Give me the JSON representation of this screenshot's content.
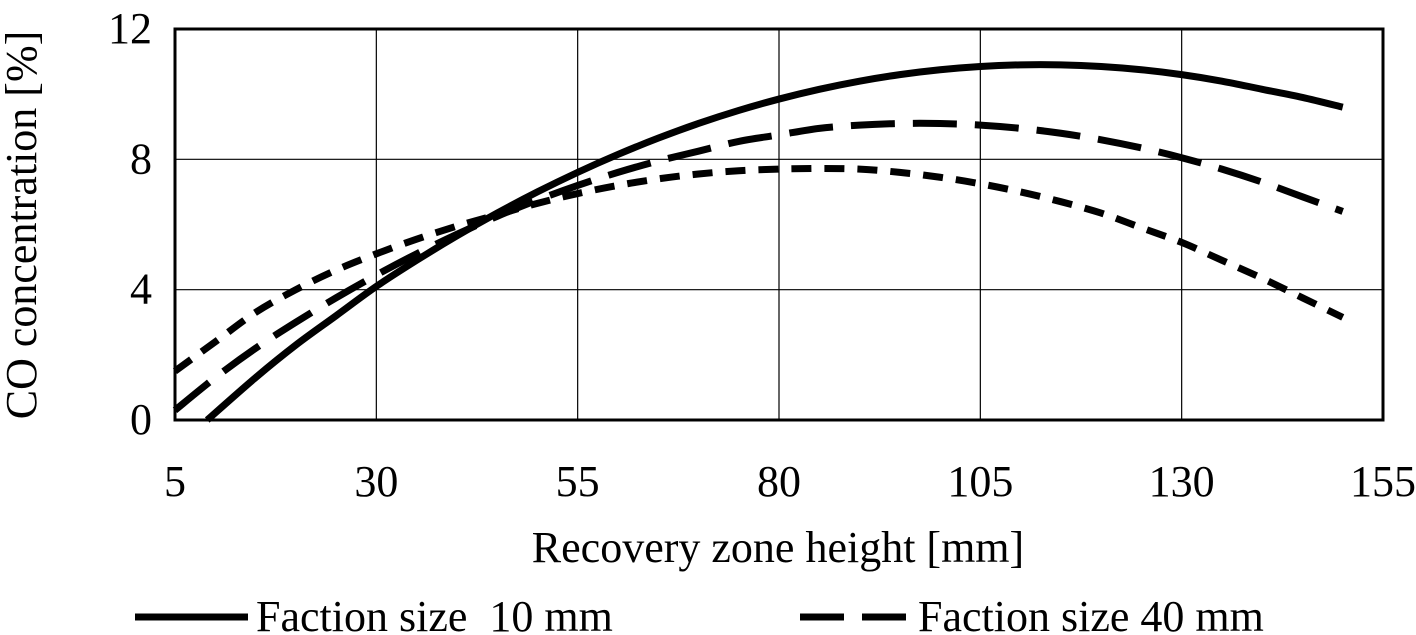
{
  "chart_data": {
    "type": "line",
    "title": "",
    "xlabel": "Recovery zone height [mm]",
    "ylabel": "CO concentration [%]",
    "xlim": [
      5,
      155
    ],
    "ylim": [
      0,
      12
    ],
    "x_ticks": [
      "5",
      "30",
      "55",
      "80",
      "105",
      "130",
      "155"
    ],
    "y_ticks": [
      "0",
      "4",
      "8",
      "12"
    ],
    "grid": true,
    "legend_position": "bottom",
    "series": [
      {
        "name": "Faction size  10 mm",
        "style": "solid",
        "color": "#000000",
        "x": [
          9,
          15,
          20,
          25,
          30,
          35,
          40,
          45,
          50,
          55,
          60,
          65,
          70,
          75,
          80,
          85,
          90,
          95,
          100,
          105,
          110,
          115,
          120,
          125,
          130,
          135,
          140,
          145,
          150
        ],
        "y": [
          0,
          1.3,
          2.3,
          3.2,
          4.1,
          4.9,
          5.65,
          6.35,
          7.0,
          7.6,
          8.15,
          8.65,
          9.1,
          9.5,
          9.85,
          10.15,
          10.4,
          10.6,
          10.75,
          10.85,
          10.9,
          10.9,
          10.85,
          10.75,
          10.6,
          10.4,
          10.15,
          9.9,
          9.6
        ]
      },
      {
        "name": "Faction size 40 mm",
        "style": "dashed",
        "color": "#000000",
        "x": [
          5,
          10,
          15,
          20,
          25,
          30,
          35,
          40,
          45,
          50,
          55,
          60,
          65,
          70,
          75,
          80,
          85,
          90,
          95,
          100,
          105,
          110,
          115,
          120,
          125,
          130,
          135,
          140,
          145,
          150
        ],
        "y": [
          0.3,
          1.3,
          2.2,
          3.0,
          3.75,
          4.45,
          5.1,
          5.7,
          6.25,
          6.75,
          7.2,
          7.6,
          7.95,
          8.25,
          8.55,
          8.75,
          8.95,
          9.05,
          9.1,
          9.1,
          9.05,
          8.95,
          8.8,
          8.6,
          8.35,
          8.05,
          7.7,
          7.3,
          6.85,
          6.4
        ]
      },
      {
        "name": "",
        "style": "short-dashed",
        "color": "#000000",
        "x": [
          5,
          10,
          15,
          20,
          25,
          30,
          35,
          40,
          45,
          50,
          55,
          60,
          65,
          70,
          75,
          80,
          85,
          90,
          95,
          100,
          105,
          110,
          115,
          120,
          125,
          130,
          135,
          140,
          145,
          150
        ],
        "y": [
          1.5,
          2.4,
          3.3,
          4.0,
          4.6,
          5.1,
          5.55,
          5.95,
          6.3,
          6.65,
          6.95,
          7.2,
          7.4,
          7.55,
          7.65,
          7.7,
          7.72,
          7.7,
          7.6,
          7.45,
          7.25,
          7.0,
          6.7,
          6.35,
          5.9,
          5.45,
          4.9,
          4.35,
          3.75,
          3.15
        ]
      }
    ]
  }
}
